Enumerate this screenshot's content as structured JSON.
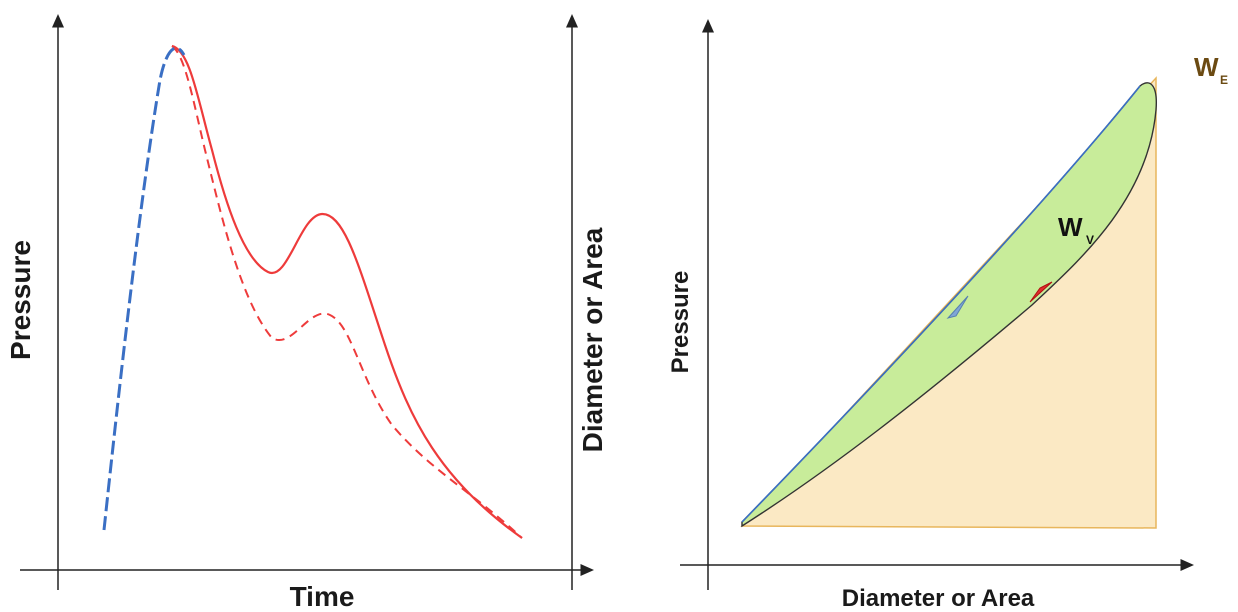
{
  "colors": {
    "pressure": "#ee3b3b",
    "diameter": "#3a6fc4",
    "loop_fill": "#c8ec9a",
    "area_fill": "#fbe9c4",
    "area_edge": "#e8b65c",
    "axis": "#222222",
    "we_text": "#6b4a12"
  },
  "chart_data": [
    {
      "type": "line",
      "xlabel": "Time",
      "ylabel_left": "Pressure",
      "ylabel_right": "Diameter or Area",
      "ticks": false,
      "series": [
        {
          "style": "solid",
          "color": "pressure"
        },
        {
          "style": "dashed",
          "color": "pressure"
        },
        {
          "style": "dashed",
          "color": "diameter"
        }
      ]
    },
    {
      "type": "area",
      "xlabel": "Diameter or Area",
      "ylabel": "Pressure",
      "ticks": false,
      "annotations": [
        {
          "main": "W",
          "sub": "V"
        },
        {
          "main": "W",
          "sub": "E"
        }
      ]
    }
  ]
}
